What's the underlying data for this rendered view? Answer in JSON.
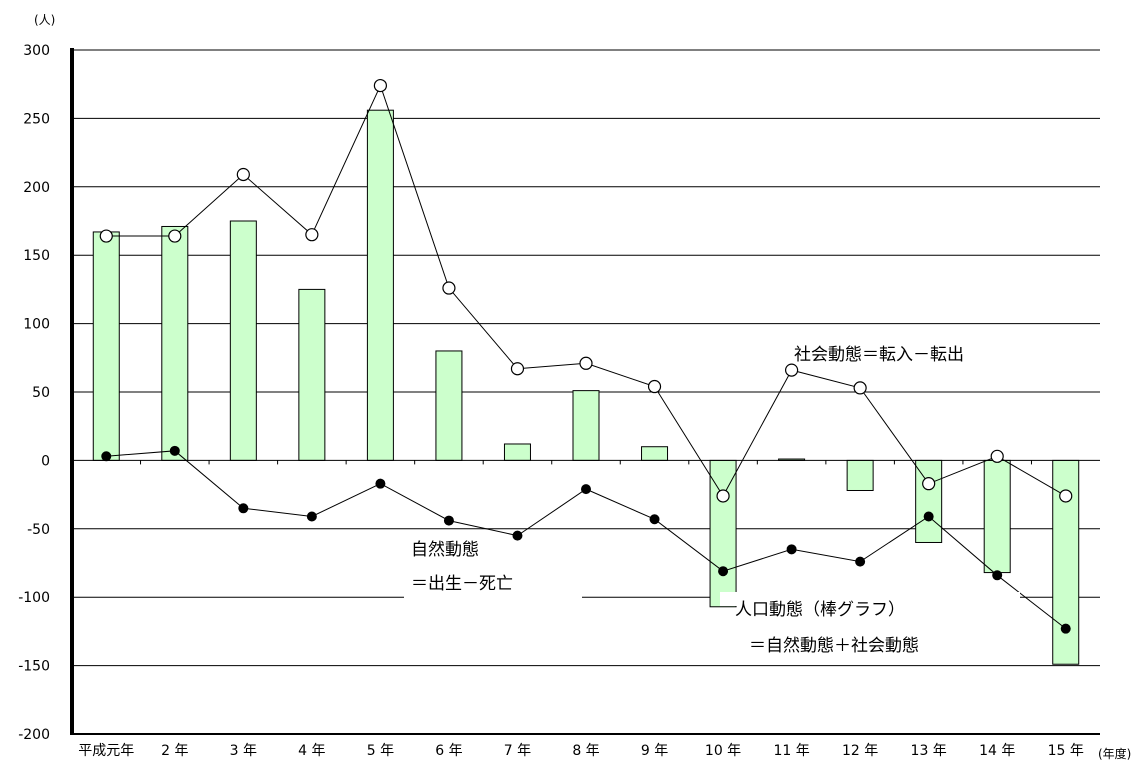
{
  "chart_data": {
    "type": "bar",
    "y_unit": "(人)",
    "x_unit": "(年度)",
    "ylim": [
      -200,
      300
    ],
    "yticks": [
      300,
      250,
      200,
      150,
      100,
      50,
      0,
      -50,
      -100,
      -150,
      -200
    ],
    "grid": true,
    "categories": [
      "平成元年",
      "2 年",
      "3 年",
      "4 年",
      "5 年",
      "6 年",
      "7 年",
      "8 年",
      "9 年",
      "10 年",
      "11 年",
      "12 年",
      "13 年",
      "14 年",
      "15 年"
    ],
    "series": [
      {
        "kind": "bar",
        "values": [
          167,
          171,
          175,
          125,
          256,
          80,
          12,
          51,
          10,
          -107,
          1,
          -22,
          -60,
          -82,
          -149
        ]
      },
      {
        "kind": "line-open",
        "values": [
          164,
          164,
          209,
          165,
          274,
          126,
          67,
          71,
          54,
          -26,
          66,
          53,
          -17,
          3,
          -26
        ]
      },
      {
        "kind": "line-filled",
        "values": [
          3,
          7,
          -35,
          -41,
          -17,
          -44,
          -55,
          -21,
          -43,
          -81,
          -65,
          -74,
          -41,
          -84,
          -123
        ]
      }
    ],
    "annotations": [
      "社会動態＝転入－転出",
      "自然動態",
      "＝出生－死亡",
      "人口動態（棒グラフ）",
      "＝自然動態＋社会動態"
    ],
    "colors": {
      "bar_fill": "#ccffcc",
      "bar_stroke": "#000000",
      "line": "#000000",
      "grid": "#000000"
    }
  }
}
